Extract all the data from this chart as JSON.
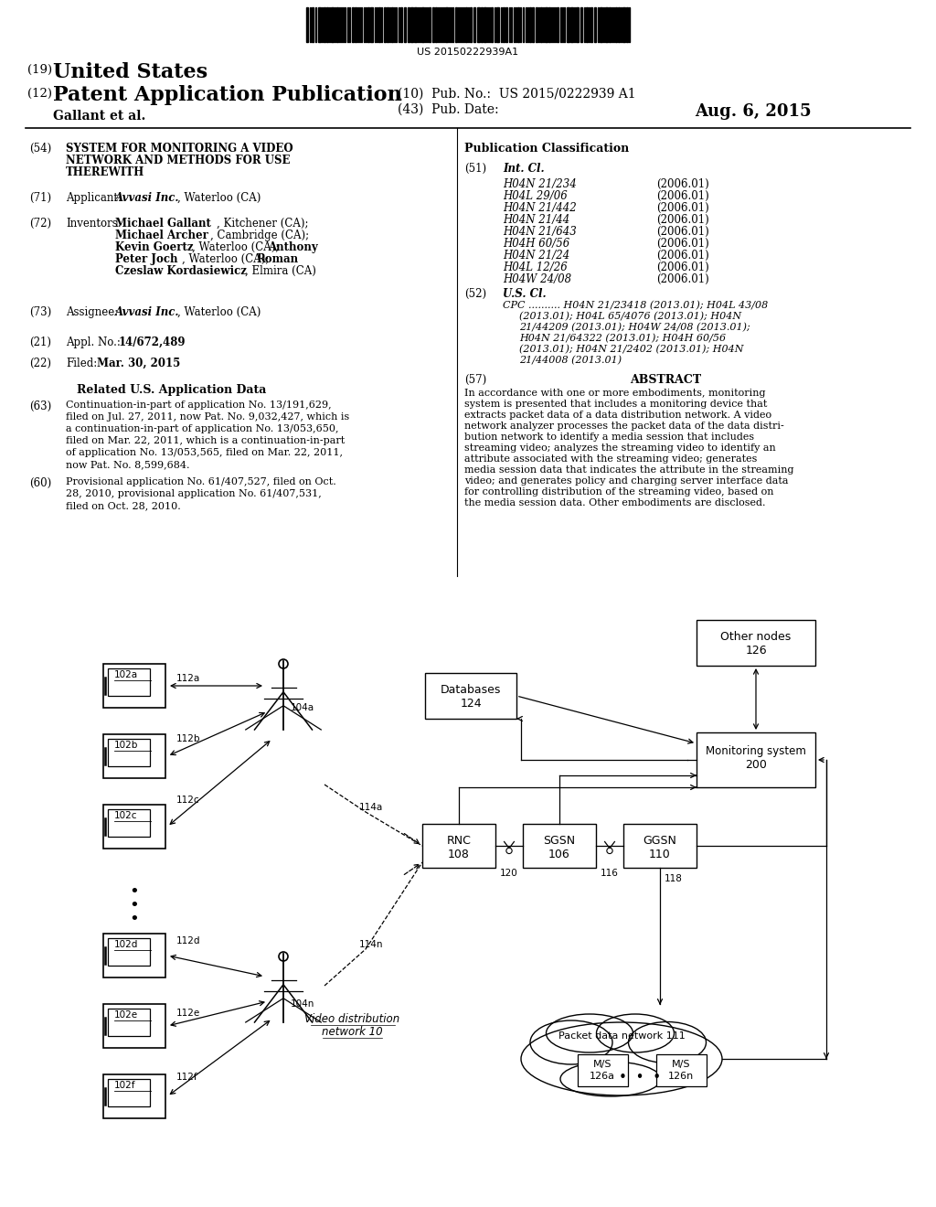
{
  "barcode_text": "US 20150222939A1",
  "bg_color": "#ffffff",
  "int_cl_items": [
    [
      "H04N 21/234",
      "(2006.01)"
    ],
    [
      "H04L 29/06",
      "(2006.01)"
    ],
    [
      "H04N 21/442",
      "(2006.01)"
    ],
    [
      "H04N 21/44",
      "(2006.01)"
    ],
    [
      "H04N 21/643",
      "(2006.01)"
    ],
    [
      "H04H 60/56",
      "(2006.01)"
    ],
    [
      "H04N 21/24",
      "(2006.01)"
    ],
    [
      "H04L 12/26",
      "(2006.01)"
    ],
    [
      "H04W 24/08",
      "(2006.01)"
    ]
  ],
  "cpc_text_lines": [
    "CPC .......... H04N 21/23418 (2013.01); H04L 43/08",
    "(2013.01); H04L 65/4076 (2013.01); H04N",
    "21/44209 (2013.01); H04W 24/08 (2013.01);",
    "H04N 21/64322 (2013.01); H04H 60/56",
    "(2013.01); H04N 21/2402 (2013.01); H04N",
    "21/44008 (2013.01)"
  ],
  "abstract_text_lines": [
    "In accordance with one or more embodiments, monitoring",
    "system is presented that includes a monitoring device that",
    "extracts packet data of a data distribution network. A video",
    "network analyzer processes the packet data of the data distri-",
    "bution network to identify a media session that includes",
    "streaming video; analyzes the streaming video to identify an",
    "attribute associated with the streaming video; generates",
    "media session data that indicates the attribute in the streaming",
    "video; and generates policy and charging server interface data",
    "for controlling distribution of the streaming video, based on",
    "the media session data. Other embodiments are disclosed."
  ],
  "text63_lines": [
    "Continuation-in-part of application No. 13/191,629,",
    "filed on Jul. 27, 2011, now Pat. No. 9,032,427, which is",
    "a continuation-in-part of application No. 13/053,650,",
    "filed on Mar. 22, 2011, which is a continuation-in-part",
    "of application No. 13/053,565, filed on Mar. 22, 2011,",
    "now Pat. No. 8,599,684."
  ],
  "text60_lines": [
    "Provisional application No. 61/407,527, filed on Oct.",
    "28, 2010, provisional application No. 61/407,531,",
    "filed on Oct. 28, 2010."
  ]
}
